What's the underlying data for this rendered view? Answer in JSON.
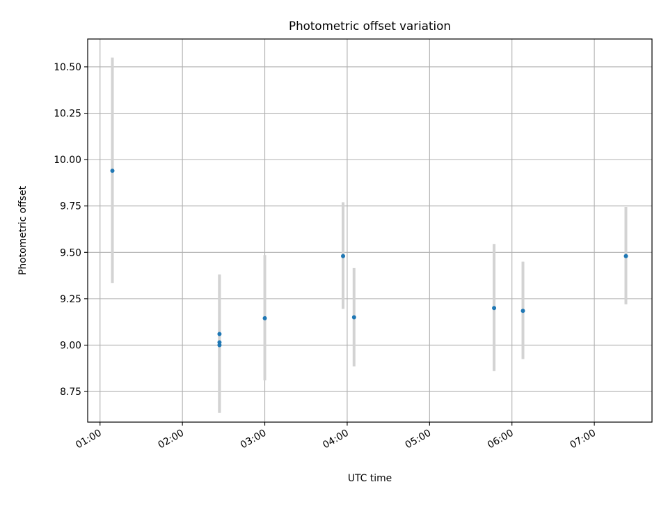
{
  "chart_data": {
    "type": "scatter",
    "title": "Photometric offset variation",
    "xlabel": "UTC time",
    "ylabel": "Photometric offset",
    "x_unit": "UTC time",
    "xlim": [
      "00:51",
      "07:42"
    ],
    "ylim": [
      8.585,
      10.65
    ],
    "x_ticks": [
      "01:00",
      "02:00",
      "03:00",
      "04:00",
      "05:00",
      "06:00",
      "07:00"
    ],
    "y_ticks": [
      "8.75",
      "9.00",
      "9.25",
      "9.50",
      "9.75",
      "10.00",
      "10.25",
      "10.50"
    ],
    "grid": true,
    "legend": false,
    "marker_color": "#1f77b4",
    "errorbar_color": "#d3d3d3",
    "points": [
      {
        "x": "01:09",
        "y": 9.94,
        "err_low": 9.335,
        "err_high": 10.55
      },
      {
        "x": "02:27",
        "y": 9.06,
        "err_low": 8.635,
        "err_high": 9.38
      },
      {
        "x": "02:27",
        "y": 9.015,
        "err_low": 8.635,
        "err_high": 9.38
      },
      {
        "x": "02:27",
        "y": 9.0,
        "err_low": 8.635,
        "err_high": 9.38
      },
      {
        "x": "03:00",
        "y": 9.145,
        "err_low": 8.81,
        "err_high": 9.485
      },
      {
        "x": "03:57",
        "y": 9.48,
        "err_low": 9.195,
        "err_high": 9.77
      },
      {
        "x": "04:05",
        "y": 9.15,
        "err_low": 8.885,
        "err_high": 9.415
      },
      {
        "x": "05:47",
        "y": 9.2,
        "err_low": 8.86,
        "err_high": 9.545
      },
      {
        "x": "06:08",
        "y": 9.185,
        "err_low": 8.925,
        "err_high": 9.45
      },
      {
        "x": "07:23",
        "y": 9.48,
        "err_low": 9.22,
        "err_high": 9.745
      }
    ]
  }
}
